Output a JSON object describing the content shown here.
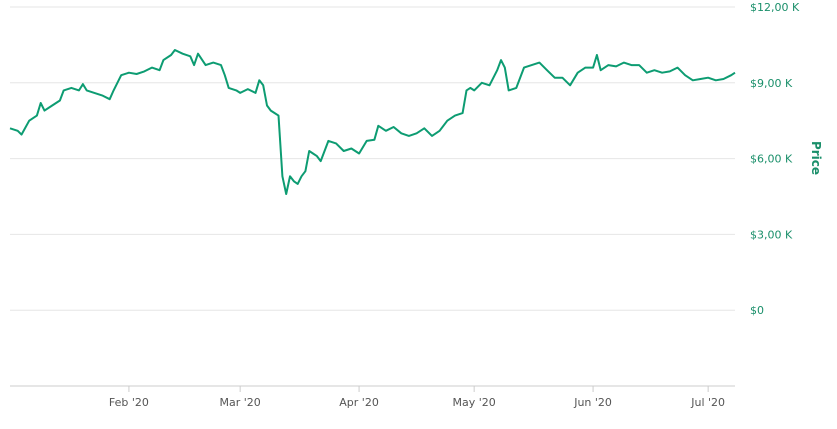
{
  "colors": {
    "line": "#0d9c72",
    "grid": "#e6e6e6",
    "axis_text": "#1a8f6a",
    "x_text": "#555555",
    "axis_line": "#cccccc"
  },
  "chart_data": {
    "type": "line",
    "title": "",
    "xlabel": "",
    "ylabel": "Price",
    "grid": true,
    "legend": "none",
    "ylim": [
      -3000,
      12000
    ],
    "y_ticks": [
      {
        "value": 0,
        "label": "$0"
      },
      {
        "value": 3000,
        "label": "$3,00 K"
      },
      {
        "value": 6000,
        "label": "$6,00 K"
      },
      {
        "value": 9000,
        "label": "$9,00 K"
      },
      {
        "value": 12000,
        "label": "$12,00 K"
      }
    ],
    "x_range": [
      "2020-01-01",
      "2020-07-08"
    ],
    "x_ticks": [
      {
        "date": "2020-02-01",
        "label": "Feb '20"
      },
      {
        "date": "2020-03-01",
        "label": "Mar '20"
      },
      {
        "date": "2020-04-01",
        "label": "Apr '20"
      },
      {
        "date": "2020-05-01",
        "label": "May '20"
      },
      {
        "date": "2020-06-01",
        "label": "Jun '20"
      },
      {
        "date": "2020-07-01",
        "label": "Jul '20"
      }
    ],
    "series": [
      {
        "points": [
          [
            "2020-01-01",
            7200
          ],
          [
            "2020-01-03",
            7100
          ],
          [
            "2020-01-04",
            6950
          ],
          [
            "2020-01-06",
            7500
          ],
          [
            "2020-01-08",
            7700
          ],
          [
            "2020-01-09",
            8200
          ],
          [
            "2020-01-10",
            7900
          ],
          [
            "2020-01-12",
            8100
          ],
          [
            "2020-01-14",
            8300
          ],
          [
            "2020-01-15",
            8700
          ],
          [
            "2020-01-17",
            8800
          ],
          [
            "2020-01-19",
            8700
          ],
          [
            "2020-01-20",
            8950
          ],
          [
            "2020-01-21",
            8700
          ],
          [
            "2020-01-23",
            8600
          ],
          [
            "2020-01-25",
            8500
          ],
          [
            "2020-01-27",
            8350
          ],
          [
            "2020-01-28",
            8700
          ],
          [
            "2020-01-30",
            9300
          ],
          [
            "2020-02-01",
            9400
          ],
          [
            "2020-02-03",
            9350
          ],
          [
            "2020-02-05",
            9450
          ],
          [
            "2020-02-07",
            9600
          ],
          [
            "2020-02-09",
            9500
          ],
          [
            "2020-02-10",
            9900
          ],
          [
            "2020-02-12",
            10100
          ],
          [
            "2020-02-13",
            10300
          ],
          [
            "2020-02-15",
            10150
          ],
          [
            "2020-02-17",
            10050
          ],
          [
            "2020-02-18",
            9700
          ],
          [
            "2020-02-19",
            10150
          ],
          [
            "2020-02-21",
            9700
          ],
          [
            "2020-02-23",
            9800
          ],
          [
            "2020-02-25",
            9700
          ],
          [
            "2020-02-26",
            9300
          ],
          [
            "2020-02-27",
            8800
          ],
          [
            "2020-02-29",
            8700
          ],
          [
            "2020-03-01",
            8600
          ],
          [
            "2020-03-03",
            8750
          ],
          [
            "2020-03-05",
            8600
          ],
          [
            "2020-03-06",
            9100
          ],
          [
            "2020-03-07",
            8900
          ],
          [
            "2020-03-08",
            8100
          ],
          [
            "2020-03-09",
            7900
          ],
          [
            "2020-03-10",
            7800
          ],
          [
            "2020-03-11",
            7700
          ],
          [
            "2020-03-12",
            5300
          ],
          [
            "2020-03-13",
            4600
          ],
          [
            "2020-03-14",
            5300
          ],
          [
            "2020-03-15",
            5100
          ],
          [
            "2020-03-16",
            5000
          ],
          [
            "2020-03-17",
            5300
          ],
          [
            "2020-03-18",
            5500
          ],
          [
            "2020-03-19",
            6300
          ],
          [
            "2020-03-20",
            6200
          ],
          [
            "2020-03-21",
            6100
          ],
          [
            "2020-03-22",
            5900
          ],
          [
            "2020-03-24",
            6700
          ],
          [
            "2020-03-26",
            6600
          ],
          [
            "2020-03-28",
            6300
          ],
          [
            "2020-03-30",
            6400
          ],
          [
            "2020-04-01",
            6200
          ],
          [
            "2020-04-03",
            6700
          ],
          [
            "2020-04-05",
            6750
          ],
          [
            "2020-04-06",
            7300
          ],
          [
            "2020-04-08",
            7100
          ],
          [
            "2020-04-10",
            7250
          ],
          [
            "2020-04-12",
            7000
          ],
          [
            "2020-04-14",
            6900
          ],
          [
            "2020-04-16",
            7000
          ],
          [
            "2020-04-18",
            7200
          ],
          [
            "2020-04-20",
            6900
          ],
          [
            "2020-04-22",
            7100
          ],
          [
            "2020-04-24",
            7500
          ],
          [
            "2020-04-26",
            7700
          ],
          [
            "2020-04-28",
            7800
          ],
          [
            "2020-04-29",
            8700
          ],
          [
            "2020-04-30",
            8800
          ],
          [
            "2020-05-01",
            8700
          ],
          [
            "2020-05-03",
            9000
          ],
          [
            "2020-05-05",
            8900
          ],
          [
            "2020-05-07",
            9500
          ],
          [
            "2020-05-08",
            9900
          ],
          [
            "2020-05-09",
            9600
          ],
          [
            "2020-05-10",
            8700
          ],
          [
            "2020-05-12",
            8800
          ],
          [
            "2020-05-14",
            9600
          ],
          [
            "2020-05-16",
            9700
          ],
          [
            "2020-05-18",
            9800
          ],
          [
            "2020-05-20",
            9500
          ],
          [
            "2020-05-22",
            9200
          ],
          [
            "2020-05-24",
            9200
          ],
          [
            "2020-05-26",
            8900
          ],
          [
            "2020-05-28",
            9400
          ],
          [
            "2020-05-30",
            9600
          ],
          [
            "2020-06-01",
            9600
          ],
          [
            "2020-06-02",
            10100
          ],
          [
            "2020-06-03",
            9500
          ],
          [
            "2020-06-05",
            9700
          ],
          [
            "2020-06-07",
            9650
          ],
          [
            "2020-06-09",
            9800
          ],
          [
            "2020-06-11",
            9700
          ],
          [
            "2020-06-13",
            9700
          ],
          [
            "2020-06-15",
            9400
          ],
          [
            "2020-06-17",
            9500
          ],
          [
            "2020-06-19",
            9400
          ],
          [
            "2020-06-21",
            9450
          ],
          [
            "2020-06-23",
            9600
          ],
          [
            "2020-06-25",
            9300
          ],
          [
            "2020-06-27",
            9100
          ],
          [
            "2020-06-29",
            9150
          ],
          [
            "2020-07-01",
            9200
          ],
          [
            "2020-07-03",
            9100
          ],
          [
            "2020-07-05",
            9150
          ],
          [
            "2020-07-07",
            9300
          ],
          [
            "2020-07-08",
            9400
          ]
        ]
      }
    ]
  }
}
